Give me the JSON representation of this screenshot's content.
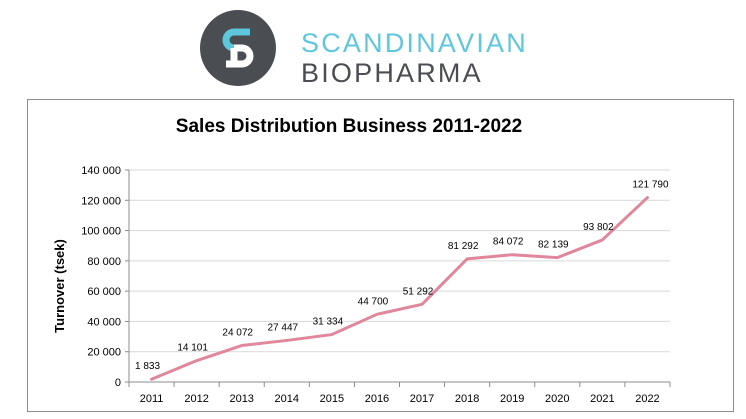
{
  "logo": {
    "line1": "SCANDINAVIAN",
    "line2": "BIOPHARMA"
  },
  "colors": {
    "line": "#e0879c",
    "grid": "#d9d9d9",
    "axis": "#8c8c8c",
    "logo_dark": "#4a4d52",
    "logo_accent": "#5fc7dc"
  },
  "chart_data": {
    "type": "line",
    "title": "Sales Distribution Business 2011-2022",
    "xlabel": "",
    "ylabel": "Turnover (tsek)",
    "categories": [
      "2011",
      "2012",
      "2013",
      "2014",
      "2015",
      "2016",
      "2017",
      "2018",
      "2019",
      "2020",
      "2021",
      "2022"
    ],
    "values": [
      1833,
      14101,
      24072,
      27447,
      31334,
      44700,
      51292,
      81292,
      84072,
      82139,
      93802,
      121790
    ],
    "data_labels": [
      "1 833",
      "14 101",
      "24 072",
      "27 447",
      "31 334",
      "44 700",
      "51 292",
      "81 292",
      "84 072",
      "82 139",
      "93 802",
      "121 790"
    ],
    "ylim": [
      0,
      140000
    ],
    "yticks": [
      0,
      20000,
      40000,
      60000,
      80000,
      100000,
      120000,
      140000
    ],
    "ytick_labels": [
      "0",
      "20 000",
      "40 000",
      "60 000",
      "80 000",
      "100 000",
      "120 000",
      "140 000"
    ],
    "grid": true,
    "legend": "none"
  }
}
